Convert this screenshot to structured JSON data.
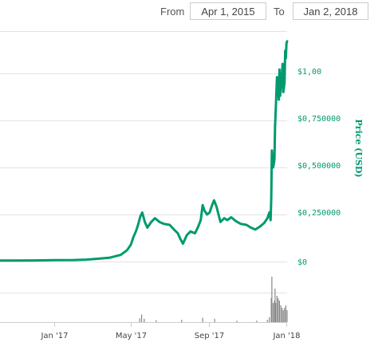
{
  "range_selector": {
    "from_label": "From",
    "from_value": "Apr 1, 2015",
    "to_label": "To",
    "to_value": "Jan 2, 2018"
  },
  "chart_data": {
    "type": "line",
    "title": "",
    "xlabel": "",
    "ylabel": "Price (USD)",
    "color": "#009a6e",
    "volume_color": "#888888",
    "grid": true,
    "x_ticks": [
      "Jan '17",
      "May '17",
      "Sep '17",
      "Jan '18"
    ],
    "y_ticks": [
      "$0",
      "$0,250000",
      "$0,500000",
      "$0,750000",
      "$1,00"
    ],
    "y_tick_values": [
      0,
      0.25,
      0.5,
      0.75,
      1.0
    ],
    "ylim": [
      0,
      1.22
    ],
    "xlim": [
      "2016-10-07",
      "2018-01-02"
    ],
    "series": [
      {
        "values": [
          [
            "2016-10-07",
            0.005
          ],
          [
            "2016-11-01",
            0.005
          ],
          [
            "2016-12-01",
            0.006
          ],
          [
            "2017-01-01",
            0.007
          ],
          [
            "2017-02-01",
            0.008
          ],
          [
            "2017-02-20",
            0.01
          ],
          [
            "2017-03-10",
            0.015
          ],
          [
            "2017-03-28",
            0.02
          ],
          [
            "2017-04-15",
            0.035
          ],
          [
            "2017-04-25",
            0.06
          ],
          [
            "2017-05-01",
            0.09
          ],
          [
            "2017-05-05",
            0.13
          ],
          [
            "2017-05-09",
            0.16
          ],
          [
            "2017-05-12",
            0.19
          ],
          [
            "2017-05-16",
            0.24
          ],
          [
            "2017-05-19",
            0.26
          ],
          [
            "2017-05-23",
            0.21
          ],
          [
            "2017-05-27",
            0.18
          ],
          [
            "2017-06-02",
            0.21
          ],
          [
            "2017-06-08",
            0.23
          ],
          [
            "2017-06-15",
            0.21
          ],
          [
            "2017-06-22",
            0.2
          ],
          [
            "2017-07-01",
            0.195
          ],
          [
            "2017-07-08",
            0.17
          ],
          [
            "2017-07-14",
            0.15
          ],
          [
            "2017-07-18",
            0.12
          ],
          [
            "2017-07-22",
            0.095
          ],
          [
            "2017-07-28",
            0.14
          ],
          [
            "2017-08-03",
            0.16
          ],
          [
            "2017-08-10",
            0.15
          ],
          [
            "2017-08-15",
            0.185
          ],
          [
            "2017-08-19",
            0.22
          ],
          [
            "2017-08-22",
            0.3
          ],
          [
            "2017-08-25",
            0.27
          ],
          [
            "2017-08-29",
            0.25
          ],
          [
            "2017-09-02",
            0.26
          ],
          [
            "2017-09-06",
            0.3
          ],
          [
            "2017-09-09",
            0.325
          ],
          [
            "2017-09-13",
            0.29
          ],
          [
            "2017-09-16",
            0.25
          ],
          [
            "2017-09-19",
            0.21
          ],
          [
            "2017-09-25",
            0.23
          ],
          [
            "2017-09-30",
            0.22
          ],
          [
            "2017-10-06",
            0.235
          ],
          [
            "2017-10-13",
            0.215
          ],
          [
            "2017-10-21",
            0.2
          ],
          [
            "2017-10-30",
            0.195
          ],
          [
            "2017-11-06",
            0.18
          ],
          [
            "2017-11-13",
            0.17
          ],
          [
            "2017-11-20",
            0.185
          ],
          [
            "2017-11-27",
            0.205
          ],
          [
            "2017-12-02",
            0.23
          ],
          [
            "2017-12-05",
            0.26
          ],
          [
            "2017-12-07",
            0.22
          ],
          [
            "2017-12-08",
            0.33
          ],
          [
            "2017-12-09",
            0.59
          ],
          [
            "2017-12-11",
            0.5
          ],
          [
            "2017-12-13",
            0.54
          ],
          [
            "2017-12-14",
            0.72
          ],
          [
            "2017-12-15",
            0.8
          ],
          [
            "2017-12-17",
            0.98
          ],
          [
            "2017-12-18",
            0.9
          ],
          [
            "2017-12-19",
            0.97
          ],
          [
            "2017-12-20",
            0.86
          ],
          [
            "2017-12-21",
            1.02
          ],
          [
            "2017-12-22",
            0.88
          ],
          [
            "2017-12-24",
            0.96
          ],
          [
            "2017-12-26",
            1.05
          ],
          [
            "2017-12-27",
            0.9
          ],
          [
            "2017-12-29",
            0.95
          ],
          [
            "2017-12-30",
            1.12
          ],
          [
            "2017-12-31",
            1.08
          ],
          [
            "2018-01-01",
            1.16
          ],
          [
            "2018-01-02",
            1.17
          ]
        ]
      }
    ],
    "volume": [
      [
        "2017-05-15",
        0.08
      ],
      [
        "2017-05-18",
        0.16
      ],
      [
        "2017-05-22",
        0.07
      ],
      [
        "2017-06-10",
        0.04
      ],
      [
        "2017-07-20",
        0.05
      ],
      [
        "2017-08-22",
        0.09
      ],
      [
        "2017-09-10",
        0.07
      ],
      [
        "2017-10-15",
        0.03
      ],
      [
        "2017-11-15",
        0.03
      ],
      [
        "2017-12-02",
        0.05
      ],
      [
        "2017-12-05",
        0.1
      ],
      [
        "2017-12-08",
        0.5
      ],
      [
        "2017-12-09",
        0.95
      ],
      [
        "2017-12-11",
        0.4
      ],
      [
        "2017-12-13",
        0.45
      ],
      [
        "2017-12-14",
        0.7
      ],
      [
        "2017-12-15",
        0.4
      ],
      [
        "2017-12-17",
        0.55
      ],
      [
        "2017-12-19",
        0.5
      ],
      [
        "2017-12-21",
        0.45
      ],
      [
        "2017-12-23",
        0.35
      ],
      [
        "2017-12-25",
        0.3
      ],
      [
        "2017-12-27",
        0.25
      ],
      [
        "2017-12-29",
        0.3
      ],
      [
        "2017-12-31",
        0.35
      ],
      [
        "2018-01-02",
        0.25
      ]
    ]
  }
}
